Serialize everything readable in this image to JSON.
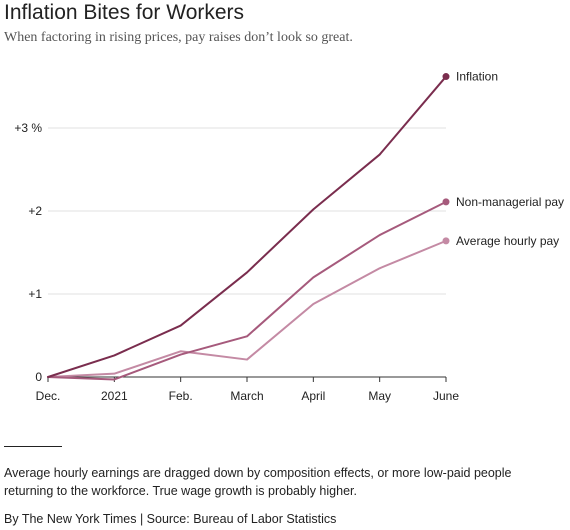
{
  "chart_data": {
    "type": "line",
    "title": "Inflation Bites for Workers",
    "subtitle": "When factoring in rising prices, pay raises don’t look so great.",
    "x": [
      "Dec.",
      "2021",
      "Feb.",
      "March",
      "April",
      "May",
      "June"
    ],
    "y_ticks": [
      {
        "value": 0,
        "label": "0"
      },
      {
        "value": 1,
        "label": "+1"
      },
      {
        "value": 2,
        "label": "+2"
      },
      {
        "value": 3,
        "label": "+3 %"
      }
    ],
    "ylim": [
      0,
      3.6
    ],
    "grid": true,
    "series": [
      {
        "name": "Inflation",
        "color": "#7a2d4e",
        "values": [
          0,
          0.26,
          0.62,
          1.26,
          2.02,
          2.68,
          3.62
        ]
      },
      {
        "name": "Non-managerial pay",
        "color": "#a65a7c",
        "values": [
          0,
          -0.03,
          0.27,
          0.49,
          1.2,
          1.71,
          2.11
        ]
      },
      {
        "name": "Average hourly pay",
        "color": "#c48aa4",
        "values": [
          0,
          0.04,
          0.31,
          0.21,
          0.88,
          1.31,
          1.64
        ]
      }
    ]
  },
  "note": "Average hourly earnings are dragged down by composition effects, or more low-paid people returning to the workforce. True wage growth is probably higher.",
  "credit": "By The New York Times | Source: Bureau of Labor Statistics"
}
